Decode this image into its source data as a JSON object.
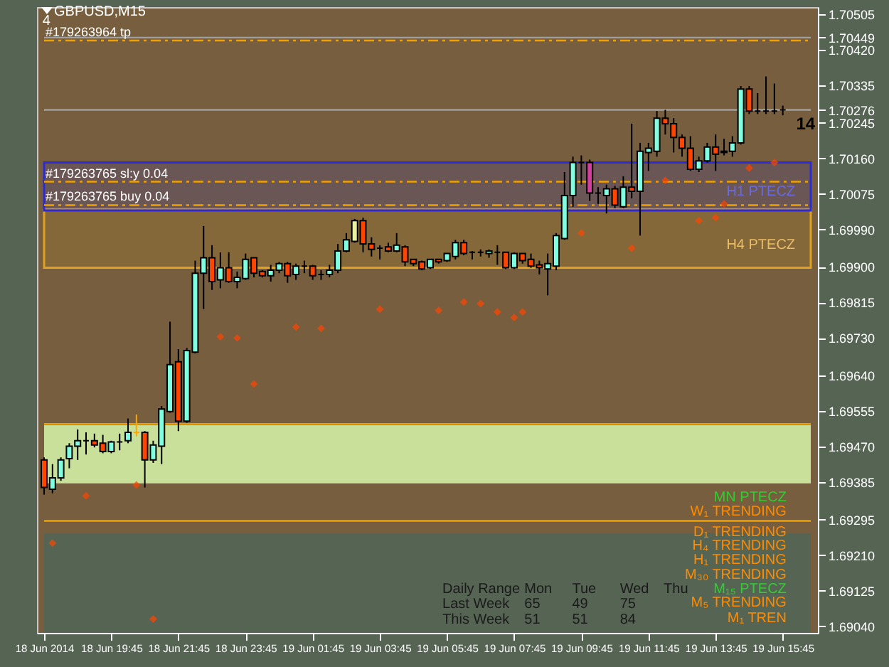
{
  "chart_data": {
    "type": "candlestick",
    "title": "GBPUSD,M15",
    "x": [
      "2014-06-18T17:45",
      "2014-06-18T18:00",
      "2014-06-18T18:15",
      "2014-06-18T18:30",
      "2014-06-18T18:45",
      "2014-06-18T19:00",
      "2014-06-18T19:15",
      "2014-06-18T19:30",
      "2014-06-18T19:45",
      "2014-06-18T20:00",
      "2014-06-18T20:15",
      "2014-06-18T20:30",
      "2014-06-18T20:45",
      "2014-06-18T21:00",
      "2014-06-18T21:15",
      "2014-06-18T21:30",
      "2014-06-18T21:45",
      "2014-06-18T22:00",
      "2014-06-18T22:15",
      "2014-06-18T22:30",
      "2014-06-18T22:45",
      "2014-06-18T23:00",
      "2014-06-18T23:15",
      "2014-06-18T23:30",
      "2014-06-18T23:45",
      "2014-06-19T00:00",
      "2014-06-19T00:15",
      "2014-06-19T00:30",
      "2014-06-19T00:45",
      "2014-06-19T01:00",
      "2014-06-19T01:15",
      "2014-06-19T01:30",
      "2014-06-19T01:45",
      "2014-06-19T02:00",
      "2014-06-19T02:15",
      "2014-06-19T02:30",
      "2014-06-19T02:45",
      "2014-06-19T03:00",
      "2014-06-19T03:15",
      "2014-06-19T03:30",
      "2014-06-19T03:45",
      "2014-06-19T04:00",
      "2014-06-19T04:15",
      "2014-06-19T04:30",
      "2014-06-19T04:45",
      "2014-06-19T05:00",
      "2014-06-19T05:15",
      "2014-06-19T05:30",
      "2014-06-19T05:45",
      "2014-06-19T06:00",
      "2014-06-19T06:15",
      "2014-06-19T06:30",
      "2014-06-19T06:45",
      "2014-06-19T07:00",
      "2014-06-19T07:15",
      "2014-06-19T07:30",
      "2014-06-19T07:45",
      "2014-06-19T08:00",
      "2014-06-19T08:15",
      "2014-06-19T08:30",
      "2014-06-19T08:45",
      "2014-06-19T09:00",
      "2014-06-19T09:15",
      "2014-06-19T09:30",
      "2014-06-19T09:45",
      "2014-06-19T10:00",
      "2014-06-19T10:15",
      "2014-06-19T10:30",
      "2014-06-19T10:45",
      "2014-06-19T11:00",
      "2014-06-19T11:15",
      "2014-06-19T11:30",
      "2014-06-19T11:45",
      "2014-06-19T12:00",
      "2014-06-19T12:15",
      "2014-06-19T12:30",
      "2014-06-19T12:45",
      "2014-06-19T13:00",
      "2014-06-19T13:15",
      "2014-06-19T13:30",
      "2014-06-19T13:45",
      "2014-06-19T14:00",
      "2014-06-19T14:15",
      "2014-06-19T14:30",
      "2014-06-19T14:45",
      "2014-06-19T15:00",
      "2014-06-19T15:15",
      "2014-06-19T15:30",
      "2014-06-19T15:45"
    ],
    "ohlc": [
      [
        1.69438,
        1.69444,
        1.69355,
        1.69372
      ],
      [
        1.69368,
        1.69428,
        1.69358,
        1.69395
      ],
      [
        1.69395,
        1.69444,
        1.69388,
        1.69438
      ],
      [
        1.69441,
        1.69478,
        1.69418,
        1.69471
      ],
      [
        1.69471,
        1.69511,
        1.69438,
        1.69484
      ],
      [
        1.69484,
        1.69504,
        1.69451,
        1.69484
      ],
      [
        1.69484,
        1.69501,
        1.69468,
        1.69474
      ],
      [
        1.69478,
        1.69498,
        1.69454,
        1.69458
      ],
      [
        1.69458,
        1.69484,
        1.69454,
        1.69481
      ],
      [
        1.69481,
        1.69501,
        1.69461,
        1.69481
      ],
      [
        1.69484,
        1.69537,
        1.69478,
        1.69504
      ],
      [
        1.69504,
        1.69547,
        1.69494,
        1.69504
      ],
      [
        1.69504,
        1.69507,
        1.69372,
        1.69438
      ],
      [
        1.69438,
        1.69484,
        1.69431,
        1.69474
      ],
      [
        1.69471,
        1.69567,
        1.69428,
        1.6956
      ],
      [
        1.69554,
        1.69769,
        1.69551,
        1.69666
      ],
      [
        1.69673,
        1.69703,
        1.69507,
        1.69531
      ],
      [
        1.69531,
        1.69706,
        1.69527,
        1.697
      ],
      [
        1.69696,
        1.69915,
        1.69693,
        1.69885
      ],
      [
        1.69885,
        1.69998,
        1.69799,
        1.69922
      ],
      [
        1.69922,
        1.69952,
        1.69845,
        1.69865
      ],
      [
        1.69869,
        1.69935,
        1.69849,
        1.69898
      ],
      [
        1.69898,
        1.69935,
        1.69862,
        1.69865
      ],
      [
        1.69865,
        1.69889,
        1.69849,
        1.69875
      ],
      [
        1.69872,
        1.69932,
        1.69869,
        1.69918
      ],
      [
        1.69922,
        1.69922,
        1.69875,
        1.69885
      ],
      [
        1.69889,
        1.69892,
        1.69875,
        1.69879
      ],
      [
        1.69879,
        1.69905,
        1.69865,
        1.69892
      ],
      [
        1.69892,
        1.69912,
        1.69885,
        1.69908
      ],
      [
        1.69908,
        1.69912,
        1.69862,
        1.69879
      ],
      [
        1.69882,
        1.69908,
        1.69869,
        1.69902
      ],
      [
        1.69902,
        1.69915,
        1.69885,
        1.69902
      ],
      [
        1.69902,
        1.69905,
        1.69869,
        1.69879
      ],
      [
        1.69882,
        1.69892,
        1.69869,
        1.69882
      ],
      [
        1.69882,
        1.69905,
        1.69875,
        1.69892
      ],
      [
        1.69892,
        1.69955,
        1.69885,
        1.69938
      ],
      [
        1.69938,
        1.69981,
        1.69935,
        1.69965
      ],
      [
        1.69961,
        1.70015,
        1.69958,
        1.70011
      ],
      [
        1.70011,
        1.70018,
        1.69935,
        1.69955
      ],
      [
        1.69955,
        1.69971,
        1.69925,
        1.69942
      ],
      [
        1.69945,
        1.69952,
        1.69918,
        1.69945
      ],
      [
        1.69948,
        1.69958,
        1.69935,
        1.69938
      ],
      [
        1.69938,
        1.69981,
        1.69935,
        1.69952
      ],
      [
        1.69948,
        1.69952,
        1.69902,
        1.69912
      ],
      [
        1.69918,
        1.69918,
        1.69902,
        1.69908
      ],
      [
        1.69912,
        1.69915,
        1.69892,
        1.69895
      ],
      [
        1.69898,
        1.69918,
        1.69895,
        1.69918
      ],
      [
        1.69918,
        1.69918,
        1.69908,
        1.69912
      ],
      [
        1.69915,
        1.69932,
        1.69912,
        1.69932
      ],
      [
        1.69925,
        1.69965,
        1.69918,
        1.69958
      ],
      [
        1.69958,
        1.69965,
        1.69928,
        1.69932
      ],
      [
        1.69935,
        1.69938,
        1.69918,
        1.69935
      ],
      [
        1.69935,
        1.69942,
        1.69925,
        1.69935
      ],
      [
        1.69932,
        1.69942,
        1.69922,
        1.69938
      ],
      [
        1.69935,
        1.69952,
        1.69905,
        1.69935
      ],
      [
        1.69935,
        1.69935,
        1.69895,
        1.69898
      ],
      [
        1.69898,
        1.69935,
        1.69895,
        1.69932
      ],
      [
        1.69932,
        1.69932,
        1.69908,
        1.69915
      ],
      [
        1.69918,
        1.69932,
        1.69898,
        1.69902
      ],
      [
        1.69905,
        1.69915,
        1.69882,
        1.69898
      ],
      [
        1.69895,
        1.69932,
        1.69832,
        1.69908
      ],
      [
        1.69902,
        1.69981,
        1.69892,
        1.69975
      ],
      [
        1.69968,
        1.70127,
        1.69965,
        1.70071
      ],
      [
        1.70071,
        1.70164,
        1.70044,
        1.7015
      ],
      [
        1.7015,
        1.70167,
        1.70097,
        1.7015
      ],
      [
        1.7015,
        1.70157,
        1.70058,
        1.70077
      ],
      [
        1.70077,
        1.70091,
        1.70051,
        1.70077
      ],
      [
        1.70071,
        1.70097,
        1.70028,
        1.70087
      ],
      [
        1.70087,
        1.70094,
        1.70041,
        1.70048
      ],
      [
        1.70044,
        1.70117,
        1.70041,
        1.70091
      ],
      [
        1.70091,
        1.70243,
        1.70064,
        1.70081
      ],
      [
        1.70081,
        1.70197,
        1.69975,
        1.70177
      ],
      [
        1.70174,
        1.70197,
        1.7013,
        1.70184
      ],
      [
        1.70177,
        1.70273,
        1.70164,
        1.70256
      ],
      [
        1.70256,
        1.70276,
        1.70217,
        1.70243
      ],
      [
        1.70243,
        1.70256,
        1.70174,
        1.7021
      ],
      [
        1.7021,
        1.70217,
        1.70164,
        1.70184
      ],
      [
        1.70184,
        1.70213,
        1.7013,
        1.70134
      ],
      [
        1.70134,
        1.70164,
        1.70127,
        1.70154
      ],
      [
        1.70154,
        1.70197,
        1.7015,
        1.70187
      ],
      [
        1.70187,
        1.70217,
        1.7013,
        1.7017
      ],
      [
        1.70174,
        1.70207,
        1.70167,
        1.70177
      ],
      [
        1.70177,
        1.70213,
        1.70164,
        1.70197
      ],
      [
        1.70197,
        1.70333,
        1.70193,
        1.70326
      ],
      [
        1.70326,
        1.70333,
        1.70266,
        1.70273
      ],
      [
        1.70273,
        1.70316,
        1.70266,
        1.70273
      ],
      [
        1.70273,
        1.70356,
        1.70266,
        1.70273
      ],
      [
        1.70273,
        1.70339,
        1.70266,
        1.70273
      ],
      [
        1.70276,
        1.70286,
        1.70263,
        1.70276
      ]
    ],
    "colors": [
      "#ff4500",
      "#80ffe0",
      "#80ffe0",
      "#80ffe0",
      "#80ffe0",
      "#000000",
      "#ff4500",
      "#ff4500",
      "#80ffe0",
      "#000000",
      "#80ffe0",
      "#ffa500",
      "#ff4500",
      "#80ffe0",
      "#80ffe0",
      "#80ffe0",
      "#ff4500",
      "#80ffe0",
      "#80ffe0",
      "#80ffe0",
      "#ff4500",
      "#80ffe0",
      "#ff4500",
      "#80ffe0",
      "#80ffe0",
      "#ff4500",
      "#ff4500",
      "#80ffe0",
      "#80ffe0",
      "#ff4500",
      "#80ffe0",
      "#000000",
      "#ff4500",
      "#000000",
      "#80ffe0",
      "#80ffe0",
      "#80ffe0",
      "#e8f0a0",
      "#ff4500",
      "#ff4500",
      "#000000",
      "#ff4500",
      "#80ffe0",
      "#ff4500",
      "#ff4500",
      "#ff4500",
      "#80ffe0",
      "#ff4500",
      "#80ffe0",
      "#80ffe0",
      "#ff4500",
      "#000000",
      "#000000",
      "#80ffe0",
      "#000000",
      "#ff4500",
      "#80ffe0",
      "#ff4500",
      "#ff4500",
      "#ff4500",
      "#80ffe0",
      "#80ffe0",
      "#80ffe0",
      "#80ffe0",
      "#000000",
      "#d0409c",
      "#000000",
      "#80ffe0",
      "#ff4500",
      "#80ffe0",
      "#ff4500",
      "#80ffe0",
      "#80ffe0",
      "#80ffe0",
      "#ff4500",
      "#ff4500",
      "#ff4500",
      "#ff4500",
      "#80ffe0",
      "#80ffe0",
      "#ff4500",
      "#80ffe0",
      "#80ffe0",
      "#80ffe0",
      "#ff4500",
      "#000000",
      "#000000",
      "#000000",
      "#000000"
    ],
    "series": [
      {
        "type": "scatter",
        "color": "#ff4500",
        "marker": "diamond",
        "x": [
          "2014-06-18T18:00",
          "2014-06-18T19:00",
          "2014-06-18T20:30",
          "2014-06-18T21:00",
          "2014-06-18T23:00",
          "2014-06-18T23:30",
          "2014-06-19T00:00",
          "2014-06-19T01:15",
          "2014-06-19T02:00",
          "2014-06-19T03:45",
          "2014-06-19T05:30",
          "2014-06-19T06:15",
          "2014-06-19T06:45",
          "2014-06-19T07:15",
          "2014-06-19T07:45",
          "2014-06-19T08:00",
          "2014-06-19T09:45",
          "2014-06-19T11:15",
          "2014-06-19T12:15",
          "2014-06-19T13:15",
          "2014-06-19T13:45",
          "2014-06-19T14:00",
          "2014-06-19T14:45",
          "2014-06-19T15:30"
        ],
        "values": [
          1.69239,
          1.69352,
          1.69378,
          1.69057,
          1.69733,
          1.6973,
          1.6962,
          1.69756,
          1.69753,
          1.69799,
          1.69796,
          1.69816,
          1.69812,
          1.69792,
          1.69779,
          1.69792,
          1.69981,
          1.69945,
          1.70107,
          1.70011,
          1.70018,
          1.70051,
          1.70137,
          1.7015
        ]
      }
    ],
    "xlim": [
      "2014-06-18T17:45",
      "2014-06-19T16:35"
    ],
    "xticks": [
      {
        "value": "2014-06-18T17:45",
        "label": "18 Jun 2014"
      },
      {
        "value": "2014-06-18T19:45",
        "label": "18 Jun 19:45"
      },
      {
        "value": "2014-06-18T21:45",
        "label": "18 Jun 21:45"
      },
      {
        "value": "2014-06-18T23:45",
        "label": "18 Jun 23:45"
      },
      {
        "value": "2014-06-19T01:45",
        "label": "19 Jun 01:45"
      },
      {
        "value": "2014-06-19T03:45",
        "label": "19 Jun 03:45"
      },
      {
        "value": "2014-06-19T05:45",
        "label": "19 Jun 05:45"
      },
      {
        "value": "2014-06-19T07:45",
        "label": "19 Jun 07:45"
      },
      {
        "value": "2014-06-19T09:45",
        "label": "19 Jun 09:45"
      },
      {
        "value": "2014-06-19T11:45",
        "label": "19 Jun 11:45"
      },
      {
        "value": "2014-06-19T13:45",
        "label": "19 Jun 13:45"
      },
      {
        "value": "2014-06-19T15:45",
        "label": "19 Jun 15:45"
      }
    ],
    "ylim": [
      1.69024,
      1.70522
    ],
    "yticks": [
      1.70505,
      1.70449,
      {
        "value": 1.7042,
        "label": "1.70420"
      },
      1.70335,
      1.70276,
      1.70245,
      {
        "value": 1.7016,
        "label": "1.70160"
      },
      1.70075,
      {
        "value": 1.6999,
        "label": "1.69990"
      },
      {
        "value": 1.699,
        "label": "1.69900"
      },
      1.69815,
      {
        "value": 1.6973,
        "label": "1.69730"
      },
      {
        "value": 1.6964,
        "label": "1.69640"
      },
      1.69555,
      {
        "value": 1.6947,
        "label": "1.69470"
      },
      1.69385,
      1.69295,
      {
        "value": 1.6921,
        "label": "1.69210"
      },
      1.69125,
      {
        "value": 1.6904,
        "label": "1.69040"
      }
    ],
    "ref_lines": [
      {
        "axis": "y",
        "value": 1.70442,
        "label": "#179263964 tp",
        "color": "#f0a000",
        "line_style": "dashed"
      },
      {
        "axis": "y",
        "value": 1.70449,
        "color": "#a0a0a0",
        "line_style": "solid"
      },
      {
        "axis": "y",
        "value": 1.70276,
        "color": "#a0a0a0",
        "line_style": "solid"
      },
      {
        "axis": "y",
        "value": 1.70104,
        "label": "#179263765 sl:y 0.04",
        "color": "#f0a000",
        "line_style": "dashed"
      },
      {
        "axis": "y",
        "value": 1.70048,
        "label": "#179263765 buy 0.04",
        "color": "#f0a000",
        "line_style": "dashed"
      },
      {
        "axis": "y",
        "value": 1.69524,
        "color": "#f0a000",
        "line_style": "solid"
      },
      {
        "axis": "y",
        "value": 1.69292,
        "color": "#f0a000",
        "line_style": "solid"
      }
    ],
    "bands": [
      {
        "axis": "y",
        "from": 1.69024,
        "to": 1.69262,
        "color": "#566454"
      },
      {
        "axis": "y",
        "from": 1.69382,
        "to": 1.69521,
        "color": "#c8e09a"
      },
      {
        "axis": "y",
        "from": 1.69898,
        "to": 1.70038,
        "label": "H4 PTECZ",
        "color": "#e0a020"
      },
      {
        "axis": "y",
        "from": 1.70035,
        "to": 1.7015,
        "label": "H1 PTECZ",
        "color": "#2a2ad8"
      }
    ],
    "annotations": [
      "4",
      "14",
      "MN PTECZ",
      "W₁ TRENDING",
      "D₁ TRENDING",
      "H₄ TRENDING",
      "H₁ TRENDING",
      "M₃₀ TRENDING",
      "M₁₅ PTECZ",
      "M₅ TRENDING",
      "M₁ TREN",
      "Daily Range",
      "Mon",
      "Tue",
      "Wed",
      "Thu",
      "Last Week",
      "65",
      "49",
      "75",
      "This Week",
      "51",
      "51",
      "84"
    ]
  }
}
